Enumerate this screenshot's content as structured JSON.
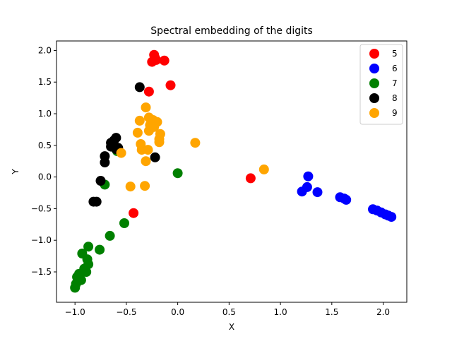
{
  "chart_data": {
    "type": "scatter",
    "title": "Spectral embedding of the digits",
    "xlabel": "X",
    "ylabel": "Y",
    "xlim": [
      -1.18,
      2.23
    ],
    "ylim": [
      -1.98,
      2.15
    ],
    "xticks": [
      -1.0,
      -0.5,
      0.0,
      0.5,
      1.0,
      1.5,
      2.0
    ],
    "xtick_labels": [
      "−1.0",
      "−0.5",
      "0.0",
      "0.5",
      "1.0",
      "1.5",
      "2.0"
    ],
    "yticks": [
      -1.5,
      -1.0,
      -0.5,
      0.0,
      0.5,
      1.0,
      1.5,
      2.0
    ],
    "ytick_labels": [
      "−1.5",
      "−1.0",
      "−0.5",
      "0.0",
      "0.5",
      "1.0",
      "1.5",
      "2.0"
    ],
    "grid": false,
    "legend_position": "top-right",
    "series": [
      {
        "name": "5",
        "color": "#ff0000",
        "points": [
          [
            -0.23,
            1.93
          ],
          [
            -0.22,
            1.88
          ],
          [
            -0.25,
            1.82
          ],
          [
            -0.21,
            1.85
          ],
          [
            -0.13,
            1.84
          ],
          [
            -0.07,
            1.45
          ],
          [
            -0.28,
            1.35
          ],
          [
            0.71,
            -0.02
          ],
          [
            -0.43,
            -0.57
          ]
        ]
      },
      {
        "name": "6",
        "color": "#0000ff",
        "points": [
          [
            1.27,
            0.01
          ],
          [
            1.26,
            -0.16
          ],
          [
            1.21,
            -0.23
          ],
          [
            1.36,
            -0.24
          ],
          [
            1.58,
            -0.32
          ],
          [
            1.62,
            -0.34
          ],
          [
            1.64,
            -0.36
          ],
          [
            1.9,
            -0.51
          ],
          [
            1.94,
            -0.53
          ],
          [
            1.98,
            -0.56
          ],
          [
            2.02,
            -0.59
          ],
          [
            2.05,
            -0.61
          ],
          [
            2.08,
            -0.63
          ]
        ]
      },
      {
        "name": "7",
        "color": "#008000",
        "points": [
          [
            0.0,
            0.06
          ],
          [
            -0.71,
            -0.12
          ],
          [
            -0.52,
            -0.73
          ],
          [
            -0.66,
            -0.93
          ],
          [
            -0.87,
            -1.1
          ],
          [
            -0.76,
            -1.15
          ],
          [
            -0.93,
            -1.21
          ],
          [
            -0.88,
            -1.3
          ],
          [
            -0.87,
            -1.38
          ],
          [
            -0.91,
            -1.45
          ],
          [
            -0.89,
            -1.5
          ],
          [
            -0.96,
            -1.53
          ],
          [
            -0.98,
            -1.58
          ],
          [
            -0.94,
            -1.63
          ],
          [
            -0.99,
            -1.69
          ],
          [
            -1.0,
            -1.75
          ],
          [
            -0.59,
            0.41
          ]
        ]
      },
      {
        "name": "8",
        "color": "#000000",
        "points": [
          [
            -0.37,
            1.42
          ],
          [
            -0.6,
            0.62
          ],
          [
            -0.62,
            0.58
          ],
          [
            -0.65,
            0.54
          ],
          [
            -0.65,
            0.48
          ],
          [
            -0.58,
            0.46
          ],
          [
            -0.6,
            0.44
          ],
          [
            -0.71,
            0.33
          ],
          [
            -0.71,
            0.23
          ],
          [
            -0.75,
            -0.06
          ],
          [
            -0.82,
            -0.39
          ],
          [
            -0.79,
            -0.39
          ],
          [
            -0.22,
            0.31
          ]
        ]
      },
      {
        "name": "9",
        "color": "#ffa500",
        "points": [
          [
            -0.31,
            1.1
          ],
          [
            -0.28,
            0.94
          ],
          [
            -0.24,
            0.9
          ],
          [
            -0.37,
            0.89
          ],
          [
            -0.2,
            0.87
          ],
          [
            -0.27,
            0.82
          ],
          [
            -0.23,
            0.79
          ],
          [
            -0.28,
            0.73
          ],
          [
            -0.39,
            0.7
          ],
          [
            -0.17,
            0.68
          ],
          [
            -0.18,
            0.6
          ],
          [
            -0.18,
            0.55
          ],
          [
            -0.36,
            0.52
          ],
          [
            -0.35,
            0.43
          ],
          [
            -0.29,
            0.43
          ],
          [
            -0.55,
            0.38
          ],
          [
            -0.31,
            0.25
          ],
          [
            0.17,
            0.54
          ],
          [
            -0.46,
            -0.15
          ],
          [
            -0.32,
            -0.14
          ],
          [
            0.84,
            0.12
          ]
        ]
      }
    ]
  }
}
